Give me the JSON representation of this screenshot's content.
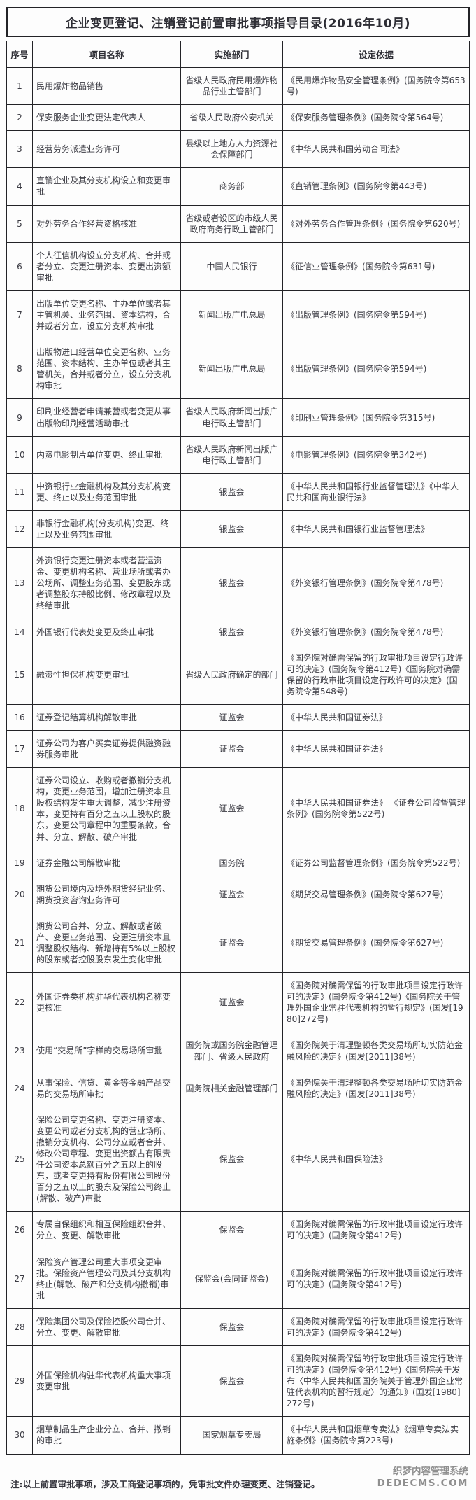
{
  "page": {
    "title": "企业变更登记、注销登记前置审批事项指导目录(2016年10月)",
    "note": "注:以上前置审批事项，涉及工商登记事项的，凭审批文件办理变更、注销登记。",
    "watermark": {
      "line1": "织梦内容管理系统",
      "line2": "DEDECMS.COM"
    }
  },
  "colors": {
    "text": "#3b3b43",
    "border": "#232327",
    "watermark": "#8f8f8f"
  },
  "table": {
    "headers": [
      "序号",
      "项目名称",
      "实施部门",
      "设定依据"
    ],
    "rows": [
      {
        "no": "1",
        "name": "民用爆炸物品销售",
        "dept": "省级人民政府民用爆炸物品行业主管部门",
        "basis": "《民用爆炸物品安全管理条例》(国务院令第653号)"
      },
      {
        "no": "2",
        "name": "保安服务企业变更法定代表人",
        "dept": "省级人民政府公安机关",
        "basis": "《保安服务管理条例》(国务院令第564号)"
      },
      {
        "no": "3",
        "name": "经营劳务派遣业务许可",
        "dept": "县级以上地方人力资源社会保障部门",
        "basis": "《中华人民共和国劳动合同法》"
      },
      {
        "no": "4",
        "name": "直销企业及其分支机构设立和变更审批",
        "dept": "商务部",
        "basis": "《直销管理条例》(国务院令第443号)"
      },
      {
        "no": "5",
        "name": "对外劳务合作经营资格核准",
        "dept": "省级或者设区的市级人民政府商务行政主管部门",
        "basis": "《对外劳务合作管理条例》(国务院令第620号)"
      },
      {
        "no": "6",
        "name": "个人征信机构设立分支机构、合并或者分立、变更注册资本、变更出资额审批",
        "dept": "中国人民银行",
        "basis": "《征信业管理条例》(国务院令第631号)"
      },
      {
        "no": "7",
        "name": "出版单位变更名称、主办单位或者其主管机关、业务范围、资本结构，合并或者分立，设立分支机构审批",
        "dept": "新闻出版广电总局",
        "basis": "《出版管理条例》(国务院令第594号)"
      },
      {
        "no": "8",
        "name": "出版物进口经营单位变更名称、业务范围、资本结构、主办单位或者其主管机关，合并或者分立，设立分支机构审批",
        "dept": "新闻出版广电总局",
        "basis": "《出版管理条例》(国务院令第594号)"
      },
      {
        "no": "9",
        "name": "印刷业经营者申请兼营或者变更从事出版物印刷经营活动审批",
        "dept": "省级人民政府新闻出版广电行政主管部门",
        "basis": "《印刷业管理条例》(国务院令第315号)"
      },
      {
        "no": "10",
        "name": "内资电影制片单位变更、终止审批",
        "dept": "省级人民政府新闻出版广电行政主管部门",
        "basis": "《电影管理条例》(国务院令第342号)"
      },
      {
        "no": "11",
        "name": "中资银行业金融机构及其分支机构变更、终止以及业务范围审批",
        "dept": "银监会",
        "basis": "《中华人民共和国银行业监督管理法》《中华人民共和国商业银行法》"
      },
      {
        "no": "12",
        "name": "非银行金融机构(分支机构)变更、终止以及业务范围审批",
        "dept": "银监会",
        "basis": "《中华人民共和国银行业监督管理法》"
      },
      {
        "no": "13",
        "name": "外资银行变更注册资本或者营运资金、变更机构名称、营业场所或者办公场所、调整业务范围、变更股东或者调整股东持股比例、修改章程以及终结审批",
        "dept": "银监会",
        "basis": "《外资银行管理条例》(国务院令第478号)"
      },
      {
        "no": "14",
        "name": "外国银行代表处变更及终止审批",
        "dept": "银监会",
        "basis": "《外资银行管理条例》(国务院令第478号)"
      },
      {
        "no": "15",
        "name": "融资性担保机构变更审批",
        "dept": "省级人民政府确定的部门",
        "basis": "《国务院对确需保留的行政审批项目设定行政许可的决定》(国务院令第412号)《国务院对确需保留的行政审批项目设定行政许可的决定》(国务院令第548号)"
      },
      {
        "no": "16",
        "name": "证券登记结算机构解散审批",
        "dept": "证监会",
        "basis": "《中华人民共和国证券法》"
      },
      {
        "no": "17",
        "name": "证券公司为客户买卖证券提供融资融券服务审批",
        "dept": "证监会",
        "basis": "《中华人民共和国证券法》"
      },
      {
        "no": "18",
        "name": "证券公司设立、收购或者撤销分支机构，变更业务范围，增加注册资本且股权结构发生重大调整，减少注册资本，变更持有百分之五以上股权的股东，变更公司章程中的重要条款，合并、分立、解散、破产审批",
        "dept": "证监会",
        "basis": "《中华人民共和国证券法》 《证券公司监督管理条例》(国务院令第522号)"
      },
      {
        "no": "19",
        "name": "证券金融公司解散审批",
        "dept": "国务院",
        "basis": "《证券公司监督管理条例》(国务院令第522号)"
      },
      {
        "no": "20",
        "name": "期货公司境内及境外期货经纪业务、期货投资咨询业务许可",
        "dept": "证监会",
        "basis": "《期货交易管理条例》(国务院令第627号)"
      },
      {
        "no": "21",
        "name": "期货公司合并、分立、解散或者破产、变更业务范围、变更注册资本且调整股权结构、新增持有5%以上股权的股东或者控股股东发生变化审批",
        "dept": "证监会",
        "basis": "《期货交易管理条例》(国务院令第627号)"
      },
      {
        "no": "22",
        "name": "外国证券类机构驻华代表机构名称变更核准",
        "dept": "证监会",
        "basis": "《国务院对确需保留的行政审批项目设定行政许可的决定》(国务院令第412号)《国务院关于管理外国企业常驻代表机构的暂行规定》(国发[1980]272号)"
      },
      {
        "no": "23",
        "name": "使用“交易所”字样的交易场所审批",
        "dept": "国务院或国务院金融管理部门、省级人民政府",
        "basis": "《国务院关于清理整顿各类交易场所切实防范金融风险的决定》(国发[2011]38号)"
      },
      {
        "no": "24",
        "name": "从事保险、信贷、黄金等金融产品交易的交易场所审批",
        "dept": "国务院相关金融管理部门",
        "basis": "《国务院关于清理整顿各类交易场所切实防范金融风险的决定》(国发[2011]38号)"
      },
      {
        "no": "25",
        "name": "保险公司变更名称、变更注册资本、变更公司或者分支机构的营业场所、撤销分支机构、公司分立或者合并、修改公司章程、变更出资额占有限责任公司资本总额百分之五以上的股东，或者变更持有股份有限公司股份百分之五以上的股东及保险公司终止(解散、破产)审批",
        "dept": "保监会",
        "basis": "《中华人民共和国保险法》"
      },
      {
        "no": "26",
        "name": "专属自保组织和相互保险组织合并、分立、变更、解散审批",
        "dept": "保监会",
        "basis": "《国务院对确需保留的行政审批项目设定行政许可的决定》(国务院令第412号)"
      },
      {
        "no": "27",
        "name": "保险资产管理公司重大事项变更审批。保险资产管理公司及其分支机构终止(解散、破产和分支机构撤销)审批",
        "dept": "保监会(会同证监会)",
        "basis": "《国务院对确需保留的行政审批项目设定行政许可的决定》(国务院令第412号)"
      },
      {
        "no": "28",
        "name": "保险集团公司及保险控股公司合并、分立、变更、解散审批",
        "dept": "保监会",
        "basis": "《国务院对确需保留的行政审批项目设定行政许可的决定》(国务院令第412号)"
      },
      {
        "no": "29",
        "name": "外国保险机构驻华代表机构重大事项变更审批",
        "dept": "保监会",
        "basis": "《国务院对确需保留的行政审批项目设定行政许可的决定》(国务院令第412号)《国务院关于发布〈中华人民共和国国务院关于管理外国企业常驻代表机构的暂行规定〉的通知》(国发[1980]272号)"
      },
      {
        "no": "30",
        "name": "烟草制品生产企业分立、合并、撤销的审批",
        "dept": "国家烟草专卖局",
        "basis": "《中华人民共和国烟草专卖法》《烟草专卖法实施条例》(国务院令第223号)"
      }
    ]
  }
}
